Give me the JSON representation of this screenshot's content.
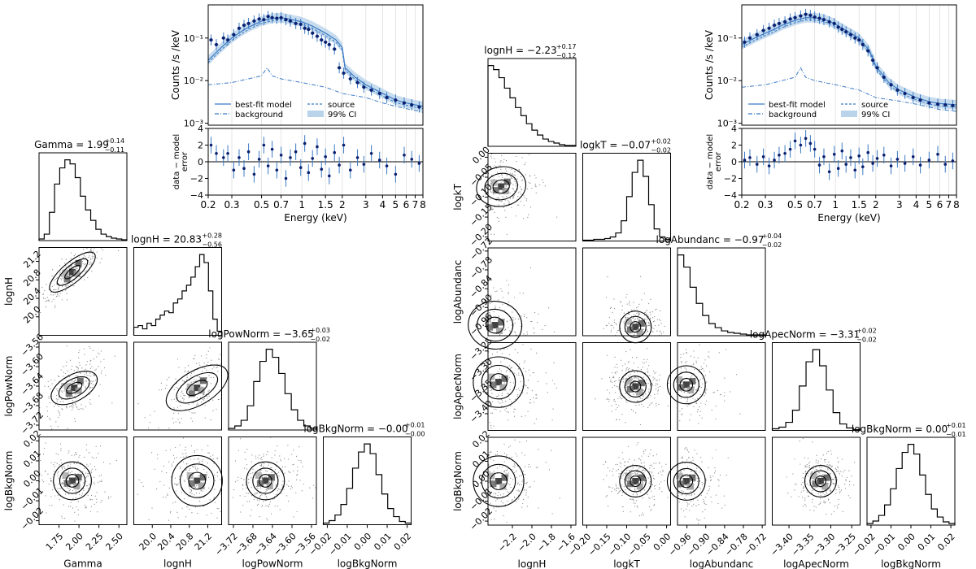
{
  "chart_data": [
    {
      "type": "corner",
      "panel": "left",
      "params": [
        {
          "name": "Gamma",
          "title": "Gamma = 1.99",
          "sup": "+0.14",
          "sub": "−0.11",
          "range": [
            1.5,
            2.6
          ],
          "ticks": [
            "1.75",
            "2.00",
            "2.25",
            "2.50"
          ],
          "tick_values": [
            1.75,
            2.0,
            2.25,
            2.5
          ],
          "hist": [
            0.02,
            0.08,
            0.35,
            0.7,
            0.9,
            1.0,
            0.95,
            0.78,
            0.55,
            0.38,
            0.25,
            0.14,
            0.08,
            0.05,
            0.03,
            0.02,
            0.01
          ]
        },
        {
          "name": "lognH",
          "title": "lognH = 20.83",
          "sup": "+0.28",
          "sub": "−0.56",
          "range": [
            19.6,
            21.5
          ],
          "ticks": [
            "20.0",
            "20.4",
            "20.8",
            "21.2"
          ],
          "tick_values": [
            20.0,
            20.4,
            20.8,
            21.2
          ],
          "hist": [
            0.1,
            0.12,
            0.08,
            0.15,
            0.12,
            0.2,
            0.25,
            0.3,
            0.28,
            0.4,
            0.45,
            0.55,
            0.62,
            0.72,
            0.85,
            1.0,
            0.9,
            0.55,
            0.2,
            0.05
          ]
        },
        {
          "name": "logPowNorm",
          "title": "logPowNorm = −3.65",
          "sup": "+0.03",
          "sub": "−0.02",
          "range": [
            -3.73,
            -3.55
          ],
          "ticks": [
            "−3.72",
            "−3.68",
            "−3.64",
            "−3.60",
            "−3.56"
          ],
          "tick_values": [
            -3.72,
            -3.68,
            -3.64,
            -3.6,
            -3.56
          ],
          "hist": [
            0.02,
            0.05,
            0.12,
            0.3,
            0.6,
            0.85,
            1.0,
            0.9,
            0.7,
            0.45,
            0.25,
            0.12,
            0.05,
            0.02
          ]
        },
        {
          "name": "logBkgNorm",
          "title": "logBkgNorm = −0.00",
          "sup": "+0.01",
          "sub": "−0.00",
          "range": [
            -0.022,
            0.022
          ],
          "ticks": [
            "−0.02",
            "−0.01",
            "0.00",
            "0.01",
            "0.02"
          ],
          "tick_values": [
            -0.02,
            -0.01,
            0.0,
            0.01,
            0.02
          ],
          "hist": [
            0.02,
            0.05,
            0.12,
            0.25,
            0.45,
            0.7,
            0.9,
            1.0,
            0.88,
            0.62,
            0.38,
            0.2,
            0.1,
            0.04,
            0.02
          ]
        }
      ]
    },
    {
      "type": "corner",
      "panel": "right",
      "params": [
        {
          "name": "lognH",
          "title": "lognH = −2.23",
          "sup": "+0.17",
          "sub": "−0.12",
          "range": [
            -2.45,
            -1.55
          ],
          "ticks": [
            "−2.2",
            "−2.0",
            "−1.8",
            "−1.6"
          ],
          "tick_values": [
            -2.2,
            -2.0,
            -1.8,
            -1.6
          ],
          "hist": [
            1.0,
            0.95,
            0.85,
            0.72,
            0.6,
            0.48,
            0.38,
            0.28,
            0.2,
            0.14,
            0.09,
            0.06,
            0.04,
            0.02,
            0.01,
            0.01
          ]
        },
        {
          "name": "logkT",
          "title": "logkT = −0.07",
          "sup": "+0.02",
          "sub": "−0.02",
          "range": [
            -0.21,
            0.01
          ],
          "ticks": [
            "−0.20",
            "−0.15",
            "−0.10",
            "−0.05",
            "0.00"
          ],
          "tick_values": [
            -0.2,
            -0.15,
            -0.1,
            -0.05,
            0.0
          ],
          "hist": [
            0.01,
            0.01,
            0.02,
            0.02,
            0.03,
            0.05,
            0.1,
            0.25,
            0.55,
            0.85,
            1.0,
            0.8,
            0.45,
            0.15,
            0.05,
            0.02
          ]
        },
        {
          "name": "logAbundanc",
          "title": "logAbundanc = −0.97",
          "sup": "+0.04",
          "sub": "−0.02",
          "range": [
            -0.99,
            -0.71
          ],
          "ticks": [
            "−0.96",
            "−0.90",
            "−0.84",
            "−0.78",
            "−0.72"
          ],
          "tick_values": [
            -0.96,
            -0.9,
            -0.84,
            -0.78,
            -0.72
          ],
          "hist": [
            1.0,
            0.85,
            0.6,
            0.4,
            0.25,
            0.15,
            0.1,
            0.06,
            0.04,
            0.03,
            0.02,
            0.01,
            0.01,
            0.01
          ]
        },
        {
          "name": "logApecNorm",
          "title": "logApecNorm = −3.31",
          "sup": "+0.02",
          "sub": "−0.02",
          "range": [
            -3.44,
            -3.23
          ],
          "ticks": [
            "−3.40",
            "−3.35",
            "−3.30",
            "−3.25"
          ],
          "tick_values": [
            -3.4,
            -3.35,
            -3.3,
            -3.25
          ],
          "hist": [
            0.02,
            0.04,
            0.1,
            0.25,
            0.55,
            0.85,
            1.0,
            0.8,
            0.5,
            0.22,
            0.08,
            0.03,
            0.01
          ]
        },
        {
          "name": "logBkgNorm",
          "title": "logBkgNorm = 0.00",
          "sup": "+0.01",
          "sub": "−0.01",
          "range": [
            -0.022,
            0.022
          ],
          "ticks": [
            "−0.02",
            "−0.01",
            "0.00",
            "0.01",
            "0.02"
          ],
          "tick_values": [
            -0.02,
            -0.01,
            0.0,
            0.01,
            0.02
          ],
          "hist": [
            0.02,
            0.05,
            0.12,
            0.25,
            0.45,
            0.7,
            0.9,
            1.0,
            0.88,
            0.62,
            0.38,
            0.2,
            0.1,
            0.04,
            0.02
          ]
        }
      ]
    },
    {
      "type": "line",
      "panel": "left-spectrum",
      "ylabel": "Counts /s /keV",
      "resid_ylabel": "data − model\nerror",
      "xlabel": "Energy (keV)",
      "xscale": "log",
      "yscale": "log",
      "xlim": [
        0.2,
        8
      ],
      "ylim": [
        0.0009,
        0.6
      ],
      "resid_ylim": [
        -4,
        4
      ],
      "xticks": [
        "0.2",
        "0.3",
        "0.5",
        "0.7",
        "1",
        "1.5",
        "2",
        "3",
        "4",
        "5",
        "6",
        "7",
        "8"
      ],
      "xtick_values": [
        0.2,
        0.3,
        0.5,
        0.7,
        1,
        1.5,
        2,
        3,
        4,
        5,
        6,
        7,
        8
      ],
      "yticks": [
        "10⁻³",
        "10⁻²",
        "10⁻¹"
      ],
      "ytick_values": [
        0.001,
        0.01,
        0.1
      ],
      "resid_yticks": [
        "−4",
        "−2",
        "0",
        "2",
        "4"
      ],
      "resid_ytick_values": [
        -4,
        -2,
        0,
        2,
        4
      ],
      "legend": [
        {
          "label": "best-fit model",
          "style": "solid"
        },
        {
          "label": "source",
          "style": "dashed"
        },
        {
          "label": "background",
          "style": "dashdot"
        },
        {
          "label": "99% CI",
          "style": "band"
        }
      ],
      "model": {
        "x": [
          0.2,
          0.25,
          0.3,
          0.35,
          0.4,
          0.5,
          0.6,
          0.7,
          0.8,
          1.0,
          1.2,
          1.5,
          1.8,
          2.0,
          2.1,
          2.5,
          3.0,
          4.0,
          5.0,
          6.0,
          7.0,
          8.0
        ],
        "y": [
          0.03,
          0.06,
          0.1,
          0.14,
          0.18,
          0.25,
          0.29,
          0.3,
          0.28,
          0.24,
          0.19,
          0.13,
          0.09,
          0.06,
          0.02,
          0.012,
          0.008,
          0.005,
          0.0035,
          0.003,
          0.0027,
          0.0025
        ]
      },
      "background": {
        "x": [
          0.2,
          0.3,
          0.4,
          0.5,
          0.55,
          0.6,
          0.7,
          1.0,
          1.5,
          2.0,
          3.0,
          4.0,
          5.0,
          6.0,
          7.0,
          8.0
        ],
        "y": [
          0.008,
          0.009,
          0.011,
          0.013,
          0.02,
          0.013,
          0.011,
          0.009,
          0.007,
          0.005,
          0.004,
          0.003,
          0.0025,
          0.0022,
          0.002,
          0.0018
        ]
      },
      "data": {
        "x": [
          0.21,
          0.23,
          0.26,
          0.28,
          0.31,
          0.34,
          0.37,
          0.4,
          0.44,
          0.48,
          0.52,
          0.56,
          0.6,
          0.65,
          0.7,
          0.76,
          0.82,
          0.9,
          0.98,
          1.05,
          1.12,
          1.2,
          1.3,
          1.4,
          1.5,
          1.6,
          1.75,
          1.9,
          2.05,
          2.3,
          2.6,
          2.9,
          3.3,
          3.8,
          4.3,
          5.0,
          5.8,
          6.6,
          7.5
        ],
        "y": [
          0.09,
          0.07,
          0.1,
          0.09,
          0.12,
          0.17,
          0.2,
          0.22,
          0.25,
          0.28,
          0.27,
          0.32,
          0.3,
          0.29,
          0.3,
          0.27,
          0.25,
          0.22,
          0.21,
          0.17,
          0.16,
          0.13,
          0.11,
          0.09,
          0.08,
          0.07,
          0.055,
          0.02,
          0.015,
          0.011,
          0.009,
          0.007,
          0.006,
          0.005,
          0.004,
          0.0035,
          0.003,
          0.0027,
          0.0024
        ]
      },
      "residuals": [
        2,
        1,
        0.5,
        1,
        -1,
        0.5,
        -0.8,
        1.2,
        -1.5,
        0.3,
        2,
        -0.5,
        1.5,
        -1,
        0.8,
        -2,
        0.5,
        1.2,
        -0.7,
        2.2,
        -1.3,
        0.4,
        1.8,
        -0.9,
        0.6,
        -1.7,
        1.1,
        -0.4,
        2,
        -1,
        0.5,
        -0.3,
        1,
        0.2,
        -0.5,
        -1.5,
        0.8,
        0.3,
        -0.2
      ]
    },
    {
      "type": "line",
      "panel": "right-spectrum",
      "ylabel": "Counts /s /keV",
      "resid_ylabel": "data − model\nerror",
      "xlabel": "Energy (keV)",
      "xscale": "log",
      "yscale": "log",
      "xlim": [
        0.2,
        8
      ],
      "ylim": [
        0.0009,
        0.6
      ],
      "resid_ylim": [
        -4,
        4
      ],
      "xticks": [
        "0.2",
        "0.3",
        "0.5",
        "0.7",
        "1",
        "1.5",
        "2",
        "3",
        "4",
        "5",
        "6",
        "7",
        "8"
      ],
      "xtick_values": [
        0.2,
        0.3,
        0.5,
        0.7,
        1,
        1.5,
        2,
        3,
        4,
        5,
        6,
        7,
        8
      ],
      "yticks": [
        "10⁻³",
        "10⁻²",
        "10⁻¹"
      ],
      "ytick_values": [
        0.001,
        0.01,
        0.1
      ],
      "resid_yticks": [
        "−4",
        "−2",
        "0",
        "2",
        "4"
      ],
      "resid_ytick_values": [
        -4,
        -2,
        0,
        2,
        4
      ],
      "legend": [
        {
          "label": "best-fit model",
          "style": "solid"
        },
        {
          "label": "source",
          "style": "dashed"
        },
        {
          "label": "background",
          "style": "dashdot"
        },
        {
          "label": "99% CI",
          "style": "band"
        }
      ],
      "model": {
        "x": [
          0.2,
          0.25,
          0.3,
          0.35,
          0.4,
          0.5,
          0.6,
          0.7,
          0.8,
          0.9,
          1.0,
          1.2,
          1.5,
          1.8,
          2.0,
          2.5,
          3.0,
          4.0,
          5.0,
          6.0,
          7.0,
          8.0
        ],
        "y": [
          0.07,
          0.1,
          0.13,
          0.16,
          0.2,
          0.26,
          0.3,
          0.3,
          0.28,
          0.25,
          0.21,
          0.15,
          0.1,
          0.05,
          0.022,
          0.009,
          0.006,
          0.004,
          0.0032,
          0.0029,
          0.0028,
          0.0027
        ]
      },
      "background": {
        "x": [
          0.2,
          0.3,
          0.4,
          0.5,
          0.55,
          0.6,
          0.7,
          1.0,
          1.5,
          2.0,
          3.0,
          4.0,
          5.0,
          6.0,
          7.0,
          8.0
        ],
        "y": [
          0.007,
          0.008,
          0.01,
          0.012,
          0.02,
          0.012,
          0.01,
          0.008,
          0.006,
          0.004,
          0.0033,
          0.0028,
          0.0024,
          0.0021,
          0.002,
          0.0019
        ]
      },
      "data": {
        "x": [
          0.21,
          0.23,
          0.26,
          0.29,
          0.32,
          0.35,
          0.38,
          0.42,
          0.46,
          0.5,
          0.55,
          0.6,
          0.65,
          0.7,
          0.76,
          0.82,
          0.9,
          0.98,
          1.05,
          1.12,
          1.2,
          1.3,
          1.4,
          1.5,
          1.6,
          1.75,
          1.9,
          2.05,
          2.3,
          2.6,
          2.9,
          3.3,
          3.8,
          4.3,
          5.0,
          5.8,
          6.6,
          7.5
        ],
        "y": [
          0.08,
          0.1,
          0.12,
          0.15,
          0.17,
          0.2,
          0.22,
          0.24,
          0.28,
          0.3,
          0.33,
          0.36,
          0.34,
          0.31,
          0.29,
          0.27,
          0.24,
          0.22,
          0.18,
          0.16,
          0.14,
          0.12,
          0.1,
          0.09,
          0.07,
          0.05,
          0.03,
          0.02,
          0.012,
          0.008,
          0.006,
          0.005,
          0.004,
          0.0035,
          0.003,
          0.0028,
          0.0027,
          0.0026
        ]
      },
      "residuals": [
        0.2,
        0.5,
        -0.3,
        0.6,
        -0.5,
        0.2,
        0.8,
        1,
        1.5,
        2.5,
        2,
        2.8,
        2.2,
        1.5,
        -0.4,
        0.6,
        -1.2,
        0.9,
        -0.8,
        1.3,
        -0.3,
        0.5,
        -1,
        0.7,
        -0.6,
        1.1,
        -0.2,
        0.4,
        0.8,
        -0.5,
        0.3,
        -0.2,
        0.6,
        -0.4,
        0.2,
        0.9,
        -0.3,
        0.1
      ]
    }
  ]
}
